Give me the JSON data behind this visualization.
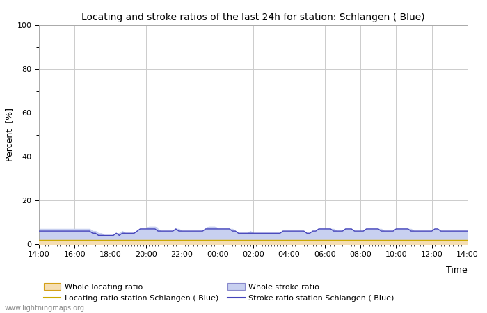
{
  "title": "Locating and stroke ratios of the last 24h for station: Schlangen ( Blue)",
  "xlabel": "Time",
  "ylabel": "Percent  [%]",
  "watermark": "www.lightningmaps.org",
  "xlim": [
    0,
    144
  ],
  "ylim": [
    0,
    100
  ],
  "yticks": [
    0,
    20,
    40,
    60,
    80,
    100
  ],
  "ytick_minor": [
    10,
    30,
    50,
    70,
    90
  ],
  "xtick_labels": [
    "14:00",
    "16:00",
    "18:00",
    "20:00",
    "22:00",
    "00:00",
    "02:00",
    "04:00",
    "06:00",
    "08:00",
    "10:00",
    "12:00",
    "14:00"
  ],
  "xtick_positions": [
    0,
    12,
    24,
    36,
    48,
    60,
    72,
    84,
    96,
    108,
    120,
    132,
    144
  ],
  "background_color": "#ffffff",
  "plot_bg_color": "#ffffff",
  "grid_color": "#cccccc",
  "whole_locating_fill_color": "#f5deb3",
  "whole_stroke_fill_color": "#c8d0f0",
  "station_locating_line_color": "#ccaa00",
  "station_stroke_line_color": "#4444bb",
  "whole_locating_data": [
    2,
    2,
    2,
    2,
    2,
    2,
    2,
    2,
    2,
    2,
    2,
    2,
    2,
    2,
    2,
    2,
    2,
    2,
    2,
    2,
    2,
    2,
    2,
    2,
    2,
    2,
    2,
    2,
    2,
    2,
    2,
    2,
    2,
    2,
    2,
    2,
    2,
    2,
    2,
    2,
    2,
    2,
    2,
    2,
    2,
    2,
    2,
    2,
    2,
    2,
    2,
    2,
    2,
    2,
    2,
    2,
    2,
    2,
    2,
    2,
    2,
    2,
    2,
    2,
    2,
    2,
    2,
    2,
    2,
    2,
    2,
    2,
    2,
    2,
    2,
    2,
    2,
    2,
    2,
    2,
    2,
    2,
    2,
    2,
    2,
    2,
    2,
    2,
    2,
    2,
    2,
    2,
    2,
    2,
    2,
    2,
    2,
    2,
    2,
    2,
    2,
    2,
    2,
    2,
    2,
    2,
    2,
    2,
    2,
    2,
    2,
    2,
    2,
    2,
    2,
    2,
    2,
    2,
    2,
    2,
    2,
    2,
    2,
    2,
    2,
    2,
    2,
    2,
    2,
    2,
    2,
    2,
    2,
    2,
    2,
    2,
    2,
    2,
    2,
    2,
    2,
    2,
    2,
    2,
    2
  ],
  "whole_stroke_data": [
    7,
    7,
    7,
    7,
    7,
    7,
    7,
    7,
    7,
    7,
    7,
    7,
    7,
    7,
    7,
    7,
    7,
    7,
    6,
    6,
    5,
    5,
    4,
    4,
    4,
    4,
    5,
    5,
    6,
    5,
    5,
    5,
    5,
    6,
    7,
    7,
    7,
    8,
    8,
    8,
    7,
    6,
    6,
    6,
    6,
    6,
    7,
    7,
    6,
    6,
    6,
    6,
    6,
    6,
    6,
    6,
    7,
    8,
    8,
    8,
    7,
    7,
    7,
    7,
    7,
    7,
    6,
    5,
    5,
    5,
    5,
    6,
    5,
    5,
    5,
    5,
    5,
    5,
    5,
    5,
    5,
    5,
    6,
    6,
    6,
    6,
    6,
    6,
    6,
    6,
    5,
    5,
    6,
    6,
    7,
    7,
    7,
    7,
    7,
    7,
    6,
    6,
    6,
    7,
    7,
    7,
    6,
    6,
    6,
    6,
    7,
    7,
    7,
    7,
    7,
    7,
    6,
    6,
    6,
    6,
    7,
    7,
    7,
    7,
    7,
    7,
    6,
    6,
    6,
    6,
    6,
    6,
    6,
    7,
    7,
    6,
    6,
    6,
    6,
    6,
    6,
    6,
    6,
    6,
    6
  ],
  "station_locating_data": [
    2,
    2,
    2,
    2,
    2,
    2,
    2,
    2,
    2,
    2,
    2,
    2,
    2,
    2,
    2,
    2,
    2,
    2,
    2,
    2,
    2,
    2,
    2,
    2,
    2,
    2,
    2,
    2,
    2,
    2,
    2,
    2,
    2,
    2,
    2,
    2,
    2,
    2,
    2,
    2,
    2,
    2,
    2,
    2,
    2,
    2,
    2,
    2,
    2,
    2,
    2,
    2,
    2,
    2,
    2,
    2,
    2,
    2,
    2,
    2,
    2,
    2,
    2,
    2,
    2,
    2,
    2,
    2,
    2,
    2,
    2,
    2,
    2,
    2,
    2,
    2,
    2,
    2,
    2,
    2,
    2,
    2,
    2,
    2,
    2,
    2,
    2,
    2,
    2,
    2,
    2,
    2,
    2,
    2,
    2,
    2,
    2,
    2,
    2,
    2,
    2,
    2,
    2,
    2,
    2,
    2,
    2,
    2,
    2,
    2,
    2,
    2,
    2,
    2,
    2,
    2,
    2,
    2,
    2,
    2,
    2,
    2,
    2,
    2,
    2,
    2,
    2,
    2,
    2,
    2,
    2,
    2,
    2,
    2,
    2,
    2,
    2,
    2,
    2,
    2,
    2,
    2,
    2,
    2,
    2
  ],
  "station_stroke_data": [
    6,
    6,
    6,
    6,
    6,
    6,
    6,
    6,
    6,
    6,
    6,
    6,
    6,
    6,
    6,
    6,
    6,
    6,
    5,
    5,
    4,
    4,
    4,
    4,
    4,
    4,
    5,
    4,
    5,
    5,
    5,
    5,
    5,
    6,
    7,
    7,
    7,
    7,
    7,
    7,
    6,
    6,
    6,
    6,
    6,
    6,
    7,
    6,
    6,
    6,
    6,
    6,
    6,
    6,
    6,
    6,
    7,
    7,
    7,
    7,
    7,
    7,
    7,
    7,
    7,
    6,
    6,
    5,
    5,
    5,
    5,
    5,
    5,
    5,
    5,
    5,
    5,
    5,
    5,
    5,
    5,
    5,
    6,
    6,
    6,
    6,
    6,
    6,
    6,
    6,
    5,
    5,
    6,
    6,
    7,
    7,
    7,
    7,
    7,
    6,
    6,
    6,
    6,
    7,
    7,
    7,
    6,
    6,
    6,
    6,
    7,
    7,
    7,
    7,
    7,
    6,
    6,
    6,
    6,
    6,
    7,
    7,
    7,
    7,
    7,
    6,
    6,
    6,
    6,
    6,
    6,
    6,
    6,
    7,
    7,
    6,
    6,
    6,
    6,
    6,
    6,
    6,
    6,
    6,
    6
  ],
  "legend_entries": [
    {
      "label": "Whole locating ratio",
      "type": "patch",
      "facecolor": "#f5deb3",
      "edgecolor": "#d4a017"
    },
    {
      "label": "Locating ratio station Schlangen ( Blue)",
      "type": "line",
      "color": "#ccaa00",
      "linestyle": "-"
    },
    {
      "label": "Whole stroke ratio",
      "type": "patch",
      "facecolor": "#c8d0f0",
      "edgecolor": "#8888cc"
    },
    {
      "label": "Stroke ratio station Schlangen ( Blue)",
      "type": "line",
      "color": "#4444bb",
      "linestyle": "-"
    }
  ],
  "figsize": [
    7.0,
    4.5
  ],
  "dpi": 100
}
